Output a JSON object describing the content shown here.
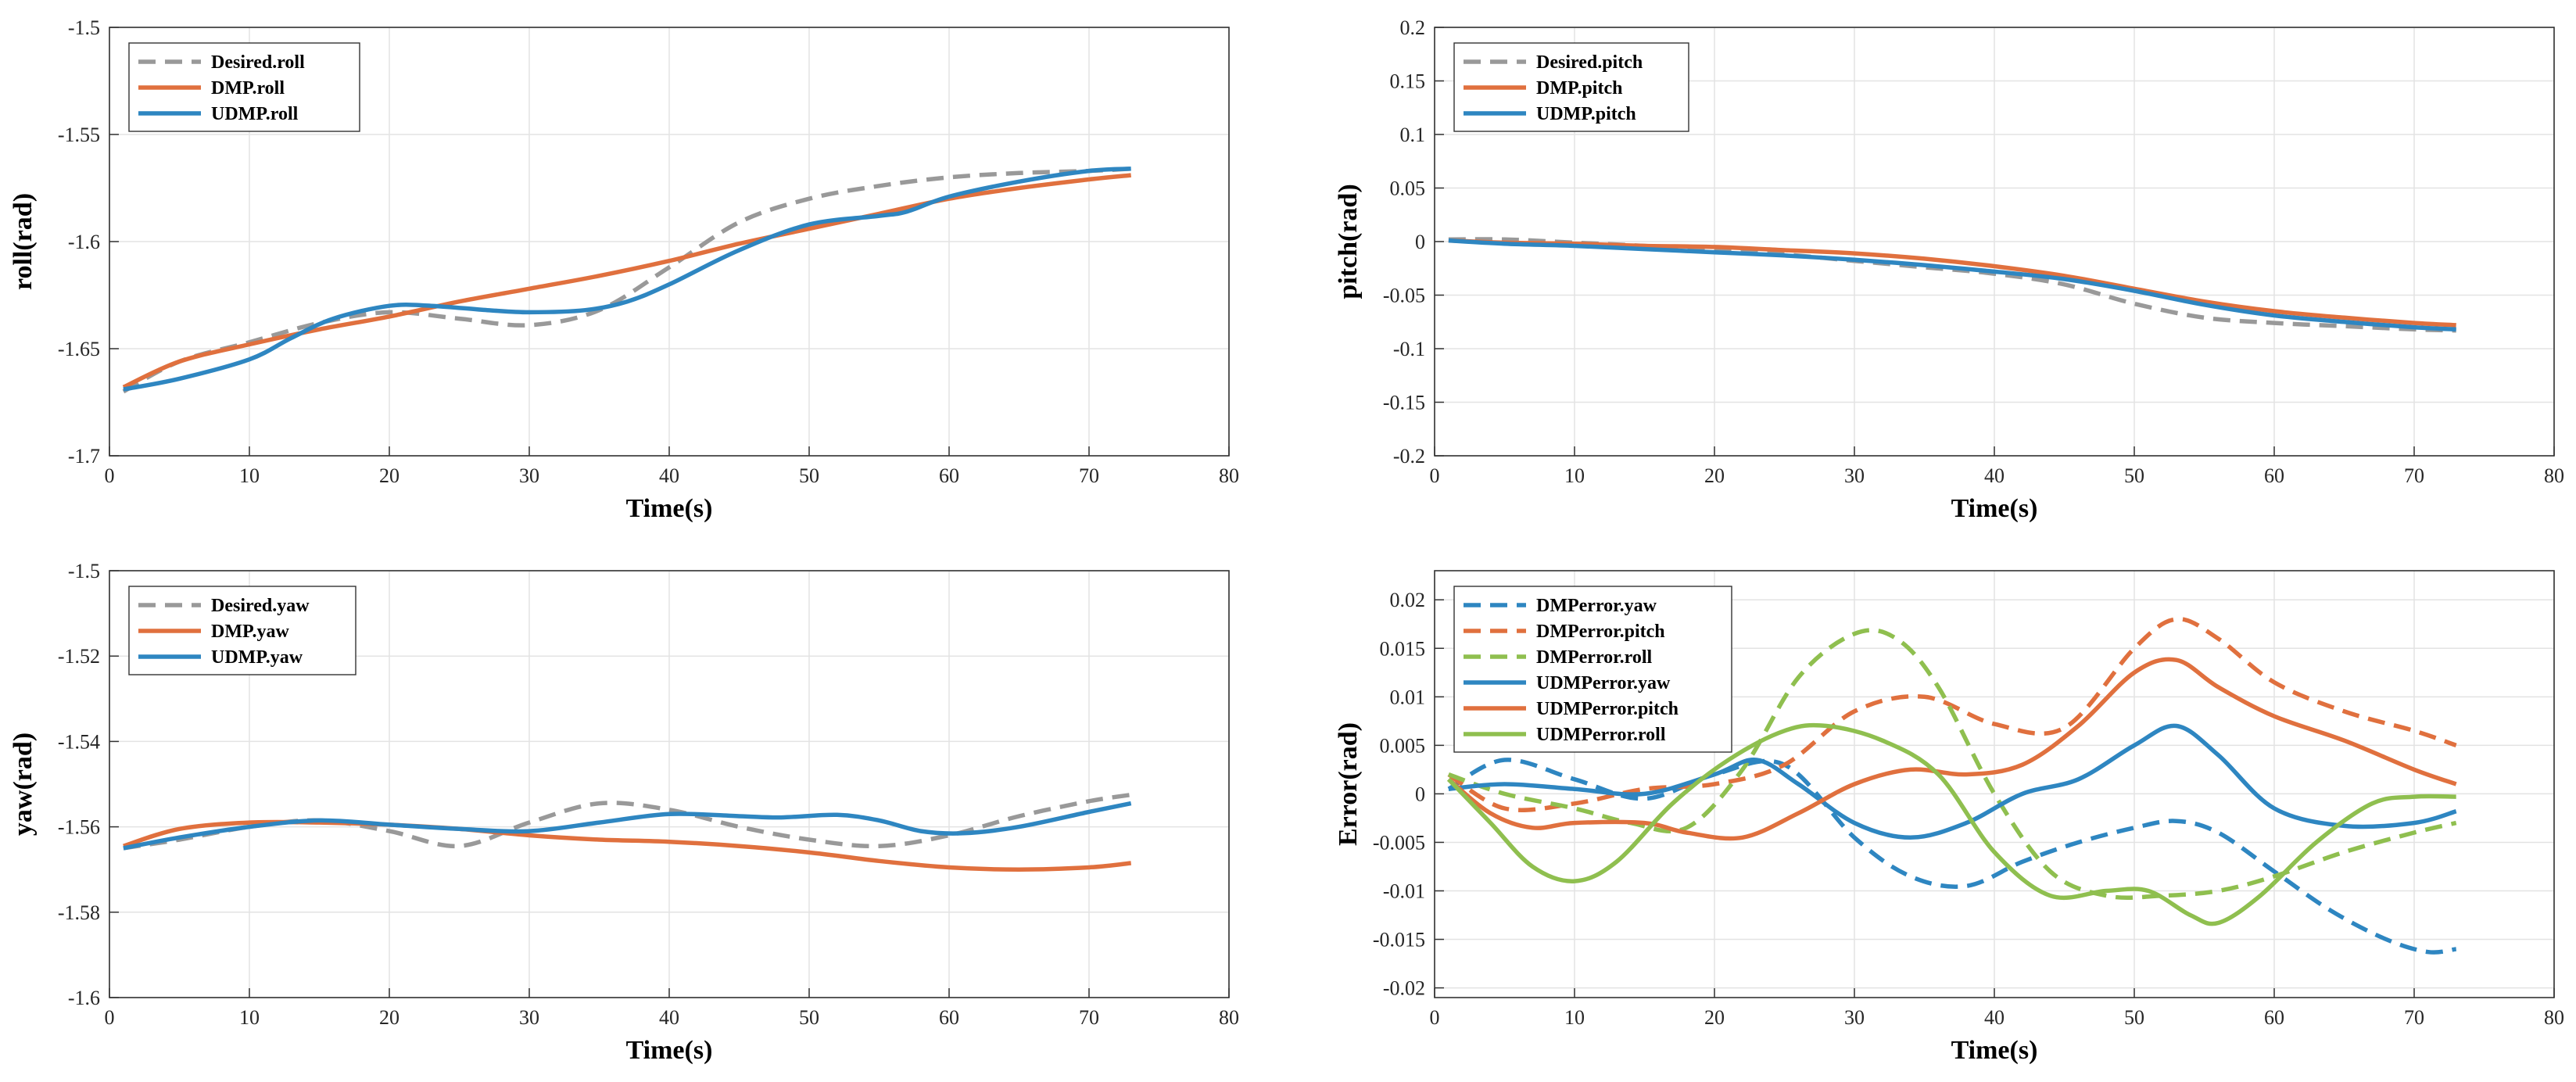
{
  "chart_data": [
    {
      "type": "line",
      "id": "roll",
      "xlabel": "Time(s)",
      "ylabel": "roll(rad)",
      "xlim": [
        0,
        80
      ],
      "ylim": [
        -1.7,
        -1.5
      ],
      "xticks": [
        0,
        10,
        20,
        30,
        40,
        50,
        60,
        70,
        80
      ],
      "yticks": [
        -1.7,
        -1.65,
        -1.6,
        -1.55,
        -1.5
      ],
      "ytick_labels": [
        "-1.7",
        "-1.65",
        "-1.6",
        "-1.55",
        "-1.5"
      ],
      "grid": true,
      "legend_position": "top-left",
      "series": [
        {
          "name": "Desired.roll",
          "color": "#999999",
          "dash": true,
          "x": [
            1,
            5,
            10,
            15,
            20,
            25,
            30,
            35,
            40,
            45,
            50,
            55,
            60,
            65,
            70,
            73
          ],
          "y": [
            -1.67,
            -1.656,
            -1.647,
            -1.638,
            -1.633,
            -1.636,
            -1.639,
            -1.632,
            -1.612,
            -1.591,
            -1.58,
            -1.574,
            -1.57,
            -1.568,
            -1.567,
            -1.566
          ]
        },
        {
          "name": "DMP.roll",
          "color": "#e0703e",
          "dash": false,
          "x": [
            1,
            5,
            10,
            15,
            20,
            25,
            30,
            35,
            40,
            45,
            50,
            55,
            60,
            65,
            70,
            73
          ],
          "y": [
            -1.668,
            -1.656,
            -1.648,
            -1.641,
            -1.635,
            -1.628,
            -1.622,
            -1.616,
            -1.609,
            -1.601,
            -1.594,
            -1.587,
            -1.58,
            -1.575,
            -1.571,
            -1.569
          ]
        },
        {
          "name": "UDMP.roll",
          "color": "#2e86c1",
          "dash": false,
          "x": [
            1,
            5,
            10,
            13,
            16,
            20,
            23,
            27,
            30,
            34,
            37,
            40,
            45,
            50,
            55,
            57,
            60,
            65,
            70,
            73
          ],
          "y": [
            -1.669,
            -1.664,
            -1.655,
            -1.645,
            -1.636,
            -1.63,
            -1.63,
            -1.632,
            -1.633,
            -1.632,
            -1.628,
            -1.62,
            -1.604,
            -1.592,
            -1.588,
            -1.586,
            -1.579,
            -1.572,
            -1.567,
            -1.566
          ]
        }
      ]
    },
    {
      "type": "line",
      "id": "pitch",
      "xlabel": "Time(s)",
      "ylabel": "pitch(rad)",
      "xlim": [
        0,
        80
      ],
      "ylim": [
        -0.2,
        0.2
      ],
      "xticks": [
        0,
        10,
        20,
        30,
        40,
        50,
        60,
        70,
        80
      ],
      "yticks": [
        -0.2,
        -0.15,
        -0.1,
        -0.05,
        0,
        0.05,
        0.1,
        0.15,
        0.2
      ],
      "ytick_labels": [
        "-0.2",
        "-0.15",
        "-0.1",
        "-0.05",
        "0",
        "0.05",
        "0.1",
        "0.15",
        "0.2"
      ],
      "grid": true,
      "legend_position": "top-left",
      "series": [
        {
          "name": "Desired.pitch",
          "color": "#999999",
          "dash": true,
          "x": [
            1,
            5,
            10,
            15,
            20,
            25,
            30,
            35,
            40,
            45,
            50,
            55,
            60,
            65,
            70,
            73
          ],
          "y": [
            0.002,
            0.002,
            -0.001,
            -0.004,
            -0.008,
            -0.012,
            -0.018,
            -0.024,
            -0.03,
            -0.04,
            -0.058,
            -0.071,
            -0.076,
            -0.079,
            -0.082,
            -0.083
          ]
        },
        {
          "name": "DMP.pitch",
          "color": "#e0703e",
          "dash": false,
          "x": [
            1,
            5,
            10,
            15,
            20,
            25,
            30,
            35,
            40,
            45,
            50,
            55,
            60,
            65,
            70,
            73
          ],
          "y": [
            0.001,
            -0.001,
            -0.002,
            -0.004,
            -0.005,
            -0.008,
            -0.011,
            -0.016,
            -0.023,
            -0.032,
            -0.044,
            -0.056,
            -0.065,
            -0.071,
            -0.076,
            -0.078
          ]
        },
        {
          "name": "UDMP.pitch",
          "color": "#2e86c1",
          "dash": false,
          "x": [
            1,
            5,
            10,
            15,
            20,
            25,
            30,
            35,
            40,
            45,
            50,
            55,
            60,
            65,
            70,
            73
          ],
          "y": [
            0.001,
            -0.002,
            -0.004,
            -0.007,
            -0.01,
            -0.013,
            -0.017,
            -0.022,
            -0.028,
            -0.035,
            -0.046,
            -0.059,
            -0.069,
            -0.075,
            -0.08,
            -0.082
          ]
        }
      ]
    },
    {
      "type": "line",
      "id": "yaw",
      "xlabel": "Time(s)",
      "ylabel": "yaw(rad)",
      "xlim": [
        0,
        80
      ],
      "ylim": [
        -1.6,
        -1.5
      ],
      "xticks": [
        0,
        10,
        20,
        30,
        40,
        50,
        60,
        70,
        80
      ],
      "yticks": [
        -1.6,
        -1.58,
        -1.56,
        -1.54,
        -1.52,
        -1.5
      ],
      "ytick_labels": [
        "-1.6",
        "-1.58",
        "-1.56",
        "-1.54",
        "-1.52",
        "-1.5"
      ],
      "grid": true,
      "legend_position": "top-left",
      "series": [
        {
          "name": "Desired.yaw",
          "color": "#999999",
          "dash": true,
          "x": [
            1,
            5,
            10,
            15,
            20,
            25,
            30,
            35,
            40,
            45,
            50,
            55,
            60,
            65,
            70,
            73
          ],
          "y": [
            -1.565,
            -1.563,
            -1.56,
            -1.5585,
            -1.561,
            -1.5645,
            -1.559,
            -1.5545,
            -1.556,
            -1.56,
            -1.563,
            -1.5645,
            -1.562,
            -1.5575,
            -1.554,
            -1.5525
          ]
        },
        {
          "name": "DMP.yaw",
          "color": "#e0703e",
          "dash": false,
          "x": [
            1,
            5,
            10,
            15,
            20,
            25,
            30,
            35,
            40,
            45,
            50,
            55,
            60,
            65,
            70,
            73
          ],
          "y": [
            -1.5645,
            -1.5605,
            -1.559,
            -1.559,
            -1.5595,
            -1.5605,
            -1.562,
            -1.563,
            -1.5635,
            -1.5645,
            -1.566,
            -1.568,
            -1.5695,
            -1.57,
            -1.5695,
            -1.5685
          ]
        },
        {
          "name": "UDMP.yaw",
          "color": "#2e86c1",
          "dash": false,
          "x": [
            1,
            5,
            10,
            15,
            20,
            25,
            30,
            35,
            40,
            45,
            48,
            52,
            55,
            58,
            61,
            65,
            70,
            73
          ],
          "y": [
            -1.565,
            -1.5625,
            -1.56,
            -1.5585,
            -1.5595,
            -1.5605,
            -1.561,
            -1.559,
            -1.557,
            -1.5575,
            -1.5578,
            -1.5572,
            -1.5585,
            -1.561,
            -1.5615,
            -1.56,
            -1.5565,
            -1.5545
          ]
        }
      ]
    },
    {
      "type": "line",
      "id": "error",
      "xlabel": "Time(s)",
      "ylabel": "Error(rad)",
      "xlim": [
        0,
        80
      ],
      "ylim": [
        -0.021,
        0.023
      ],
      "xticks": [
        0,
        10,
        20,
        30,
        40,
        50,
        60,
        70,
        80
      ],
      "yticks": [
        -0.02,
        -0.015,
        -0.01,
        -0.005,
        0,
        0.005,
        0.01,
        0.015,
        0.02
      ],
      "ytick_labels": [
        "-0.02",
        "-0.015",
        "-0.01",
        "-0.005",
        "0",
        "0.005",
        "0.01",
        "0.015",
        "0.02"
      ],
      "grid": true,
      "legend_position": "top-left",
      "series": [
        {
          "name": "DMPerror.yaw",
          "color": "#2e86c1",
          "dash": true,
          "x": [
            1,
            5,
            10,
            15,
            20,
            25,
            30,
            34,
            38,
            42,
            46,
            50,
            53,
            56,
            60,
            64,
            68,
            71,
            73
          ],
          "y": [
            0.0005,
            0.0035,
            0.0015,
            -0.0005,
            0.002,
            0.003,
            -0.0045,
            -0.0085,
            -0.0095,
            -0.007,
            -0.005,
            -0.0035,
            -0.0028,
            -0.004,
            -0.008,
            -0.012,
            -0.015,
            -0.0163,
            -0.016
          ]
        },
        {
          "name": "DMPerror.pitch",
          "color": "#e0703e",
          "dash": true,
          "x": [
            1,
            5,
            10,
            15,
            20,
            25,
            30,
            35,
            40,
            45,
            50,
            53,
            56,
            60,
            65,
            70,
            73
          ],
          "y": [
            0.002,
            -0.0015,
            -0.001,
            0.0005,
            0.001,
            0.003,
            0.0085,
            0.01,
            0.0072,
            0.0068,
            0.015,
            0.018,
            0.016,
            0.0115,
            0.0085,
            0.0065,
            0.005
          ]
        },
        {
          "name": "DMPerror.roll",
          "color": "#8fbf4f",
          "dash": true,
          "x": [
            1,
            5,
            10,
            14,
            18,
            22,
            26,
            30,
            33,
            36,
            40,
            44,
            48,
            52,
            56,
            60,
            65,
            70,
            73
          ],
          "y": [
            0.002,
            0.0,
            -0.0015,
            -0.003,
            -0.0035,
            0.0025,
            0.012,
            0.0165,
            0.016,
            0.011,
            0.0,
            -0.008,
            -0.0105,
            -0.0105,
            -0.01,
            -0.0085,
            -0.006,
            -0.004,
            -0.003
          ]
        },
        {
          "name": "UDMPerror.yaw",
          "color": "#2e86c1",
          "dash": false,
          "x": [
            1,
            5,
            10,
            15,
            20,
            23,
            26,
            30,
            34,
            38,
            42,
            46,
            50,
            53,
            56,
            60,
            65,
            70,
            73
          ],
          "y": [
            0.0005,
            0.001,
            0.0005,
            0.0,
            0.002,
            0.0035,
            0.001,
            -0.003,
            -0.0045,
            -0.003,
            0.0,
            0.0015,
            0.005,
            0.007,
            0.004,
            -0.0015,
            -0.0033,
            -0.003,
            -0.0018
          ]
        },
        {
          "name": "UDMPerror.pitch",
          "color": "#e0703e",
          "dash": false,
          "x": [
            1,
            4,
            7,
            10,
            15,
            18,
            22,
            26,
            30,
            34,
            38,
            42,
            46,
            50,
            53,
            56,
            60,
            65,
            70,
            73
          ],
          "y": [
            0.0015,
            -0.002,
            -0.0035,
            -0.003,
            -0.003,
            -0.004,
            -0.0045,
            -0.002,
            0.001,
            0.0025,
            0.002,
            0.003,
            0.007,
            0.0125,
            0.0138,
            0.011,
            0.008,
            0.0055,
            0.0025,
            0.001
          ]
        },
        {
          "name": "UDMPerror.roll",
          "color": "#8fbf4f",
          "dash": false,
          "x": [
            1,
            4,
            7,
            10,
            13,
            17,
            21,
            25,
            28,
            32,
            36,
            40,
            44,
            48,
            51,
            54,
            56,
            59,
            63,
            67,
            70,
            73
          ],
          "y": [
            0.0015,
            -0.003,
            -0.0075,
            -0.009,
            -0.007,
            -0.001,
            0.0035,
            0.0065,
            0.007,
            0.0055,
            0.002,
            -0.006,
            -0.0105,
            -0.01,
            -0.01,
            -0.0125,
            -0.0133,
            -0.0105,
            -0.005,
            -0.001,
            -0.0003,
            -0.0003
          ]
        }
      ]
    }
  ]
}
